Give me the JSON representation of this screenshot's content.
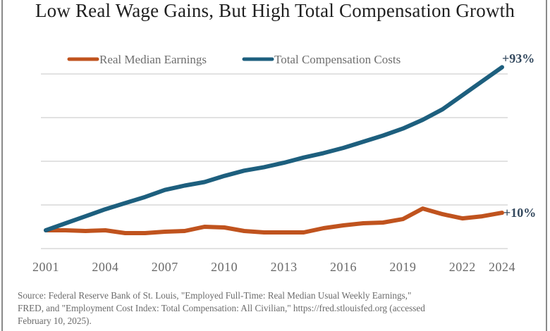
{
  "chart_data": {
    "type": "line",
    "title": "Low Real Wage Gains, But High Total Compensation  Growth",
    "xlabel": "",
    "ylabel": "",
    "x": [
      2001,
      2002,
      2003,
      2004,
      2005,
      2006,
      2007,
      2008,
      2009,
      2010,
      2011,
      2012,
      2013,
      2014,
      2015,
      2016,
      2017,
      2018,
      2019,
      2020,
      2021,
      2022,
      2023,
      2024
    ],
    "x_ticks": [
      "2001",
      "2004",
      "2007",
      "2010",
      "2013",
      "2016",
      "2019",
      "2022",
      "2024"
    ],
    "ylim": [
      -10,
      100
    ],
    "y_unit": "% change since 2001",
    "grid": true,
    "legend_position": "top",
    "series": [
      {
        "name": "Real Median Earnings",
        "color": "#c0531e",
        "values": [
          0,
          0,
          -0.4,
          0,
          -1.6,
          -1.6,
          -0.8,
          -0.4,
          2,
          1.6,
          -0.4,
          -1.2,
          -1.2,
          -1.2,
          1.2,
          2.8,
          4,
          4.4,
          6.4,
          12.4,
          9.2,
          6.8,
          8,
          10
        ],
        "end_label": "+10%"
      },
      {
        "name": "Total Compensation Costs",
        "color": "#1d5f7e",
        "values": [
          0,
          4,
          8,
          12,
          15.5,
          19,
          23,
          25.5,
          27.5,
          31,
          34,
          36,
          38.5,
          41.5,
          44,
          47,
          50.5,
          54,
          58,
          63,
          69,
          77,
          85,
          93
        ],
        "end_label": "+93%"
      }
    ]
  },
  "source": {
    "lines": [
      "Source: Federal Reserve Bank of St. Louis, \"Employed Full-Time: Real Median Usual Weekly Earnings,\"",
      "FRED, and \"Employment Cost Index: Total Compensation: All Civilian,\" https://fred.stlouisfed.org  (accessed",
      "February 10, 2025)."
    ]
  }
}
